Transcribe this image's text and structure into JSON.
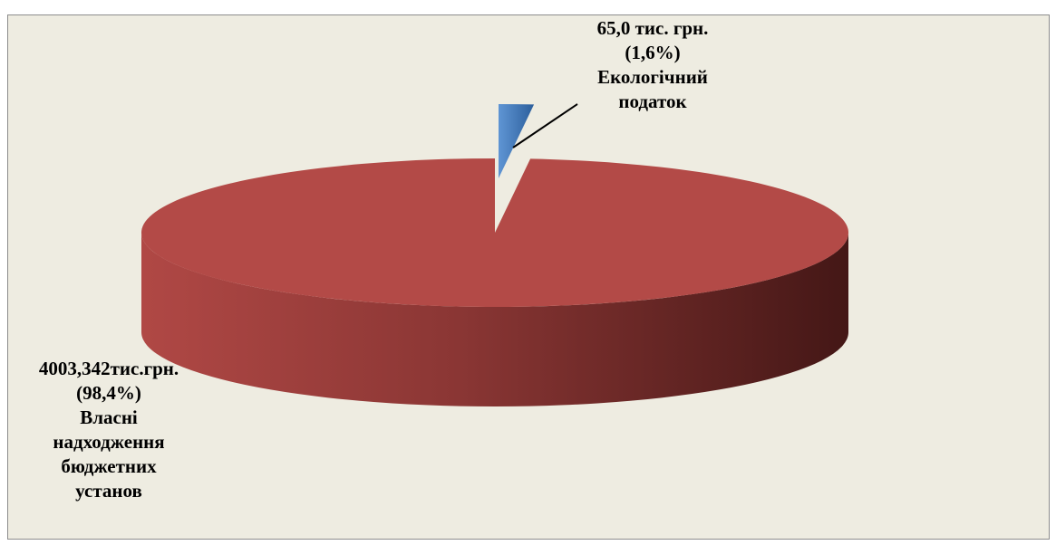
{
  "chart_data": {
    "type": "pie",
    "style": "3d",
    "unit": "тис. грн.",
    "slices": [
      {
        "name": "Екологічний податок",
        "value": 65.0,
        "percent": 1.6,
        "color": "#3f77b8",
        "label_lines": [
          "65,0 тис. грн.",
          "(1,6%)",
          "Екологічний",
          "податок"
        ]
      },
      {
        "name": "Власні надходження бюджетних установ",
        "value": 4003.342,
        "percent": 98.4,
        "color": "#b34a47",
        "label_lines": [
          "4003,342тис.грн.",
          "(98,4%)",
          "Власні",
          "надходження",
          "бюджетних",
          "установ"
        ]
      }
    ]
  }
}
